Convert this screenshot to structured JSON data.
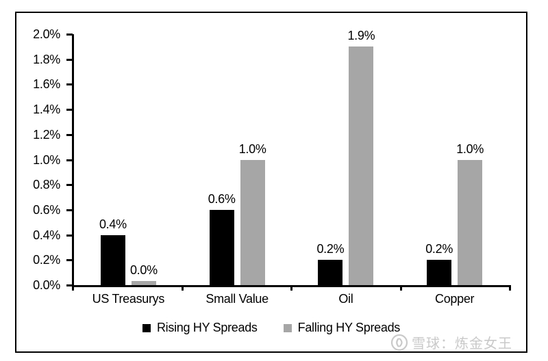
{
  "chart_data": {
    "type": "bar",
    "title": "",
    "categories": [
      "US Treasurys",
      "Small Value",
      "Oil",
      "Copper"
    ],
    "series": [
      {
        "name": "Rising HY Spreads",
        "color": "#000000",
        "values": [
          0.4,
          0.6,
          0.2,
          0.2
        ],
        "labels": [
          "0.4%",
          "0.6%",
          "0.2%",
          "0.2%"
        ]
      },
      {
        "name": "Falling HY Spreads",
        "color": "#a6a6a6",
        "values": [
          0.0,
          1.0,
          1.9,
          1.0
        ],
        "labels": [
          "0.0%",
          "1.0%",
          "1.9%",
          "1.0%"
        ]
      }
    ],
    "xlabel": "",
    "ylabel": "",
    "ylim": [
      0.0,
      2.0
    ],
    "ytick_step": 0.2,
    "yticks_top_down": [
      "2.0%",
      "1.8%",
      "1.6%",
      "1.4%",
      "1.2%",
      "1.0%",
      "0.8%",
      "0.6%",
      "0.4%",
      "0.2%",
      "0.0%"
    ],
    "grid": false,
    "legend_position": "bottom",
    "data_labels_shown": true
  },
  "watermark": {
    "text": "雪球：炼金女王",
    "logo_icon": "xueqiu-logo-icon",
    "color": "#c9c9c9"
  }
}
